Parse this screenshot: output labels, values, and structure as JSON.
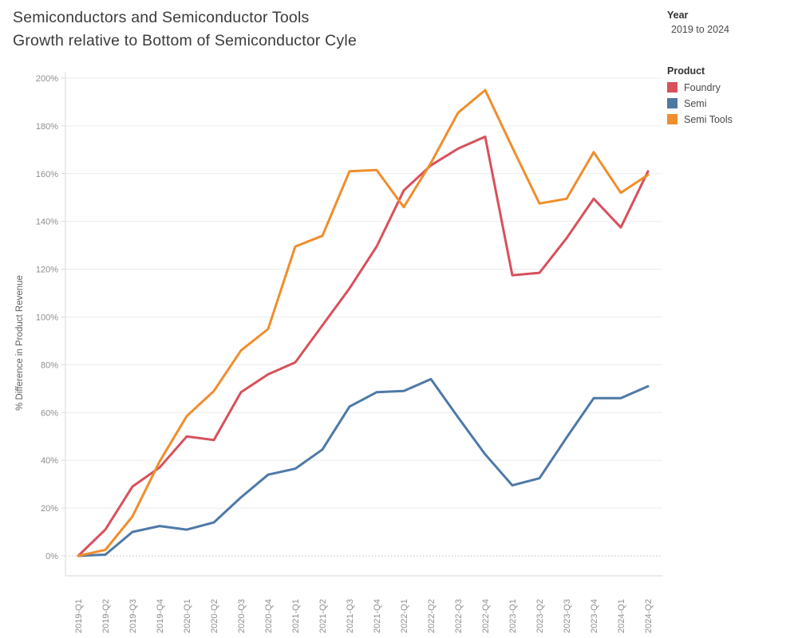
{
  "title": {
    "line1": "Semiconductors and Semiconductor Tools",
    "line2": "Growth relative to Bottom of Semiconductor Cyle"
  },
  "filters": {
    "year_label": "Year",
    "year_value": "2019 to 2024"
  },
  "legend": {
    "title": "Product",
    "items": [
      {
        "label": "Foundry",
        "color": "#D8505C"
      },
      {
        "label": "Semi",
        "color": "#4E79A7"
      },
      {
        "label": "Semi Tools",
        "color": "#EF8E2C"
      }
    ]
  },
  "chart_data": {
    "type": "line",
    "title": "Semiconductors and Semiconductor Tools Growth relative to Bottom of Semiconductor Cyle",
    "xlabel": "",
    "ylabel": "% Difference in Product Revenue",
    "ylim": [
      0,
      200
    ],
    "ytick_step": 20,
    "ytick_suffix": "%",
    "grid": true,
    "legend_position": "right",
    "categories": [
      "2019-Q1",
      "2019-Q2",
      "2019-Q3",
      "2019-Q4",
      "2020-Q1",
      "2020-Q2",
      "2020-Q3",
      "2020-Q4",
      "2021-Q1",
      "2021-Q2",
      "2021-Q3",
      "2021-Q4",
      "2022-Q1",
      "2022-Q2",
      "2022-Q3",
      "2022-Q4",
      "2023-Q1",
      "2023-Q2",
      "2023-Q3",
      "2023-Q4",
      "2024-Q1",
      "2024-Q2"
    ],
    "series": [
      {
        "name": "Foundry",
        "color": "#D8505C",
        "values": [
          0,
          11,
          29,
          37,
          50,
          48.5,
          68.5,
          76,
          81,
          96.5,
          112,
          129.5,
          153,
          163.5,
          170.5,
          175.5,
          117.5,
          118.5,
          133,
          149.5,
          137.5,
          161
        ]
      },
      {
        "name": "Semi",
        "color": "#4E79A7",
        "values": [
          0,
          0.5,
          10,
          12.5,
          11,
          14,
          24.5,
          34,
          36.5,
          44.5,
          62.5,
          68.5,
          69,
          74,
          58,
          42.5,
          29.5,
          32.5,
          49.5,
          66,
          66,
          71
        ]
      },
      {
        "name": "Semi Tools",
        "color": "#EF8E2C",
        "values": [
          0,
          2.5,
          16.5,
          39.5,
          58.5,
          69,
          86,
          95,
          129.5,
          134,
          161,
          161.5,
          146,
          164.5,
          185.5,
          195,
          171,
          147.5,
          149.5,
          169,
          152,
          159.5
        ]
      }
    ]
  }
}
